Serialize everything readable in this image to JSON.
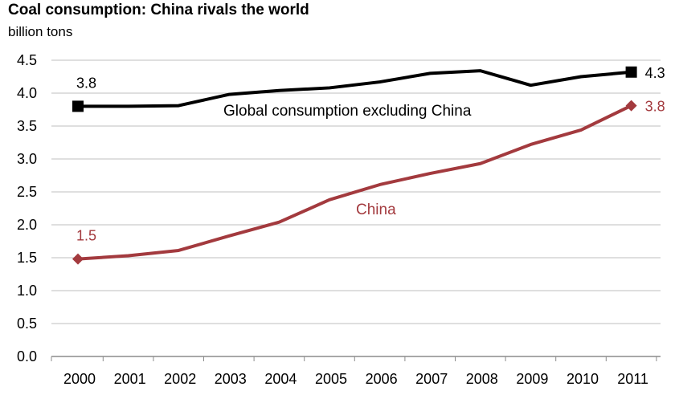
{
  "title": "Coal consumption: China rivals the world",
  "unit_label": "billion tons",
  "colors": {
    "world": "#000000",
    "china": "#a33a3e",
    "grid": "#bfbfbf",
    "axis": "#8c8c8c"
  },
  "chart_data": {
    "type": "line",
    "title": "Coal consumption: China rivals the world",
    "ylabel": "billion tons",
    "xlabel": "",
    "x": [
      "2000",
      "2001",
      "2002",
      "2003",
      "2004",
      "2005",
      "2006",
      "2007",
      "2008",
      "2009",
      "2010",
      "2011"
    ],
    "ylim": [
      0,
      4.5
    ],
    "yticks": [
      "0.0",
      "0.5",
      "1.0",
      "1.5",
      "2.0",
      "2.5",
      "3.0",
      "3.5",
      "4.0",
      "4.5"
    ],
    "grid": true,
    "legend": "none",
    "series": [
      {
        "name": "Global consumption excluding China",
        "values": [
          3.8,
          3.8,
          3.81,
          3.98,
          4.04,
          4.08,
          4.17,
          4.3,
          4.34,
          4.12,
          4.25,
          4.32
        ],
        "start_label": "3.8",
        "end_label": "4.3"
      },
      {
        "name": "China",
        "values": [
          1.48,
          1.53,
          1.61,
          1.83,
          2.04,
          2.38,
          2.61,
          2.78,
          2.93,
          3.22,
          3.44,
          3.81
        ],
        "start_label": "1.5",
        "end_label": "3.8"
      }
    ]
  }
}
